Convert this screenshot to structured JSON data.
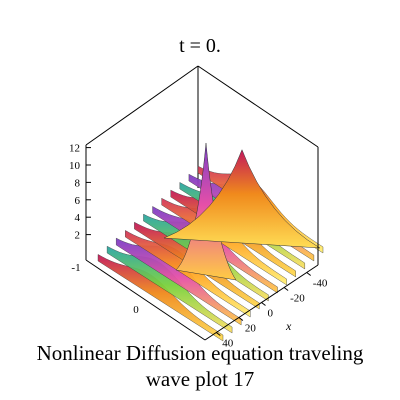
{
  "caption": {
    "line1": "Nonlinear Diffusion equation  traveling",
    "line2": "wave plot 17"
  },
  "chart_data": {
    "type": "surface3d",
    "title": "t = 0.",
    "xlabel": "x",
    "ylabel": "",
    "zlabel": "",
    "xlim": [
      -50,
      50
    ],
    "ylim": [
      -1.2,
      1.2
    ],
    "zlim": [
      0,
      13
    ],
    "x_ticks": [
      -40,
      -20,
      0,
      20,
      40
    ],
    "y_ticks": [
      -1,
      0
    ],
    "z_ticks": [
      2,
      4,
      6,
      8,
      10,
      12
    ],
    "surface": {
      "description": "oscillating ridges with two sharp peaks near x = 0",
      "peak_values": [
        12.3,
        10.5
      ],
      "ridge_count": 12
    },
    "grid": false,
    "legend": "none"
  }
}
